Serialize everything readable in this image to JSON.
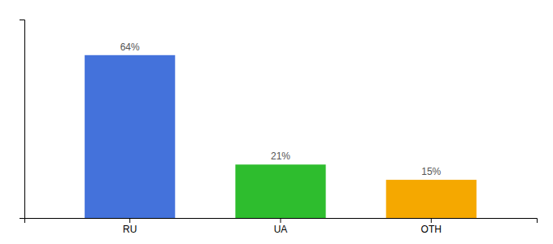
{
  "chart_data": {
    "type": "bar",
    "categories": [
      "RU",
      "UA",
      "OTH"
    ],
    "values": [
      64,
      21,
      15
    ],
    "value_labels": [
      "64%",
      "21%",
      "15%"
    ],
    "colors": [
      "#4472db",
      "#2ebd2e",
      "#f5a800"
    ],
    "ylim": [
      0,
      78
    ],
    "yticks": [],
    "data_labels": true,
    "tick_labels": "x"
  }
}
